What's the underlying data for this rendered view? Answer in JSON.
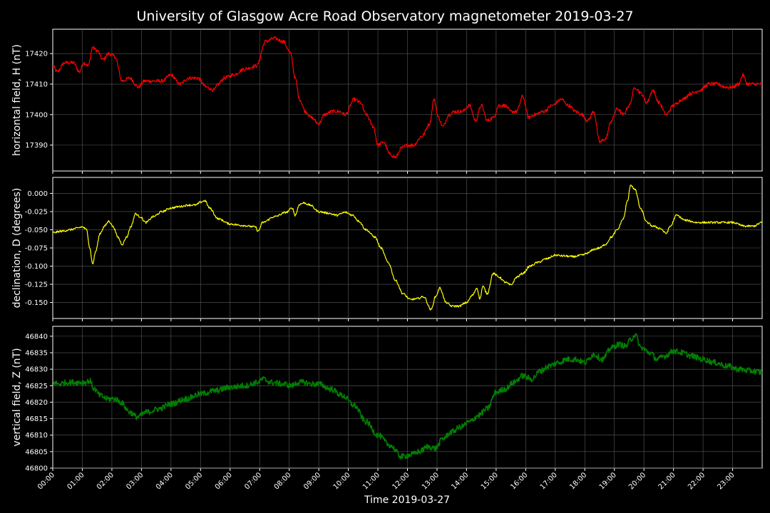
{
  "chart_data": {
    "type": "line",
    "title": "University of Glasgow Acre Road Observatory magnetometer 2019-03-27",
    "xlabel": "Time 2019-03-27",
    "x_unit": "hours",
    "xlim": [
      0,
      24
    ],
    "x_ticks": [
      "00:00",
      "01:00",
      "02:00",
      "03:00",
      "04:00",
      "05:00",
      "06:00",
      "07:00",
      "08:00",
      "09:00",
      "10:00",
      "11:00",
      "12:00",
      "13:00",
      "14:00",
      "15:00",
      "16:00",
      "17:00",
      "18:00",
      "19:00",
      "20:00",
      "21:00",
      "22:00",
      "23:00"
    ],
    "grid": true,
    "background": "#000000",
    "panels": [
      {
        "ylabel": "horizontal field, H (nT)",
        "color": "#ff0000",
        "ylim": [
          17381.5,
          17428
        ],
        "yticks": [
          17390,
          17400,
          17410,
          17420
        ],
        "ytick_decimals": 0,
        "noise": 0.6,
        "x": [
          0,
          0.15,
          0.4,
          0.7,
          0.9,
          1.05,
          1.2,
          1.35,
          1.5,
          1.7,
          1.9,
          2.1,
          2.35,
          2.6,
          2.9,
          3.1,
          3.3,
          3.7,
          4.0,
          4.3,
          4.6,
          4.9,
          5.2,
          5.45,
          5.6,
          5.8,
          6.1,
          6.5,
          6.9,
          7.2,
          7.5,
          7.8,
          8.05,
          8.2,
          8.35,
          8.55,
          8.75,
          9.0,
          9.2,
          9.45,
          9.7,
          9.9,
          10.2,
          10.4,
          10.6,
          10.85,
          11.0,
          11.2,
          11.4,
          11.6,
          11.8,
          12.0,
          12.2,
          12.5,
          12.75,
          12.9,
          13.05,
          13.2,
          13.4,
          13.6,
          13.85,
          14.1,
          14.3,
          14.5,
          14.7,
          14.9,
          15.1,
          15.3,
          15.5,
          15.7,
          15.9,
          16.1,
          16.3,
          16.6,
          16.9,
          17.2,
          17.45,
          17.7,
          17.9,
          18.1,
          18.3,
          18.5,
          18.7,
          18.9,
          19.1,
          19.3,
          19.5,
          19.7,
          19.9,
          20.1,
          20.3,
          20.5,
          20.75,
          21.0,
          21.3,
          21.6,
          21.9,
          22.2,
          22.5,
          22.75,
          23.0,
          23.2,
          23.35,
          23.5,
          23.75,
          24.0
        ],
        "values": [
          17416,
          17414,
          17417,
          17417,
          17414,
          17417,
          17416,
          17422,
          17421,
          17418,
          17420,
          17419,
          17411,
          17412,
          17409,
          17411,
          17411,
          17411,
          17413,
          17410,
          17412,
          17412,
          17409,
          17408,
          17410,
          17412,
          17413,
          17415,
          17416,
          17424,
          17425,
          17424,
          17420,
          17412,
          17405,
          17401,
          17399,
          17397,
          17400,
          17401,
          17401,
          17400,
          17405,
          17404,
          17400,
          17396,
          17390,
          17391,
          17387,
          17386,
          17389,
          17390,
          17390,
          17393,
          17397,
          17405,
          17399,
          17396,
          17400,
          17401,
          17401,
          17403,
          17398,
          17403,
          17398,
          17399,
          17403,
          17403,
          17401,
          17401,
          17406,
          17399,
          17400,
          17401,
          17403,
          17405,
          17403,
          17401,
          17400,
          17398,
          17401,
          17391,
          17392,
          17398,
          17402,
          17400,
          17403,
          17409,
          17407,
          17404,
          17408,
          17404,
          17400,
          17403,
          17405,
          17407,
          17408,
          17410,
          17410,
          17409,
          17409,
          17410,
          17413,
          17410,
          17410,
          17410
        ]
      },
      {
        "ylabel": "declination, D (degrees)",
        "color": "#ffff00",
        "ylim": [
          -0.172,
          0.022
        ],
        "yticks": [
          -0.15,
          -0.125,
          -0.1,
          -0.075,
          -0.05,
          -0.025,
          0.0
        ],
        "ytick_decimals": 3,
        "noise": 0.0014,
        "x": [
          0,
          0.3,
          0.6,
          0.8,
          1.0,
          1.15,
          1.25,
          1.35,
          1.45,
          1.6,
          1.75,
          1.9,
          2.05,
          2.2,
          2.35,
          2.5,
          2.65,
          2.8,
          2.95,
          3.15,
          3.4,
          3.7,
          4.0,
          4.3,
          4.6,
          4.85,
          5.0,
          5.15,
          5.3,
          5.6,
          6.0,
          6.4,
          6.85,
          6.95,
          7.1,
          7.5,
          7.9,
          8.1,
          8.2,
          8.35,
          8.5,
          8.7,
          9.0,
          9.3,
          9.6,
          9.9,
          10.15,
          10.35,
          10.6,
          10.9,
          11.1,
          11.35,
          11.6,
          11.85,
          12.1,
          12.3,
          12.55,
          12.8,
          12.95,
          13.1,
          13.3,
          13.5,
          13.75,
          14.0,
          14.2,
          14.35,
          14.45,
          14.55,
          14.7,
          14.9,
          15.1,
          15.3,
          15.5,
          15.7,
          15.9,
          16.15,
          16.4,
          16.7,
          17.0,
          17.3,
          17.6,
          17.9,
          18.1,
          18.3,
          18.5,
          18.7,
          18.9,
          19.1,
          19.3,
          19.45,
          19.55,
          19.7,
          19.9,
          20.1,
          20.3,
          20.55,
          20.75,
          20.9,
          21.1,
          21.4,
          21.8,
          22.2,
          22.6,
          23.0,
          23.4,
          23.7,
          24.0
        ],
        "values": [
          -0.054,
          -0.052,
          -0.05,
          -0.048,
          -0.046,
          -0.05,
          -0.075,
          -0.097,
          -0.08,
          -0.055,
          -0.045,
          -0.038,
          -0.046,
          -0.06,
          -0.07,
          -0.06,
          -0.045,
          -0.028,
          -0.032,
          -0.04,
          -0.032,
          -0.025,
          -0.02,
          -0.018,
          -0.016,
          -0.016,
          -0.012,
          -0.01,
          -0.02,
          -0.035,
          -0.042,
          -0.044,
          -0.046,
          -0.052,
          -0.04,
          -0.032,
          -0.026,
          -0.02,
          -0.03,
          -0.015,
          -0.013,
          -0.016,
          -0.025,
          -0.027,
          -0.03,
          -0.026,
          -0.03,
          -0.038,
          -0.05,
          -0.06,
          -0.075,
          -0.095,
          -0.12,
          -0.138,
          -0.146,
          -0.145,
          -0.142,
          -0.16,
          -0.142,
          -0.13,
          -0.15,
          -0.155,
          -0.155,
          -0.15,
          -0.14,
          -0.13,
          -0.145,
          -0.128,
          -0.138,
          -0.11,
          -0.115,
          -0.122,
          -0.126,
          -0.115,
          -0.11,
          -0.1,
          -0.095,
          -0.09,
          -0.085,
          -0.086,
          -0.087,
          -0.085,
          -0.082,
          -0.077,
          -0.075,
          -0.07,
          -0.06,
          -0.05,
          -0.035,
          -0.01,
          0.012,
          0.005,
          -0.022,
          -0.04,
          -0.045,
          -0.048,
          -0.055,
          -0.045,
          -0.03,
          -0.037,
          -0.04,
          -0.04,
          -0.04,
          -0.04,
          -0.045,
          -0.045,
          -0.04
        ]
      },
      {
        "ylabel": "vertical field, Z (nT)",
        "color": "#008000",
        "ylim": [
          46800,
          46843
        ],
        "yticks": [
          46800,
          46805,
          46810,
          46815,
          46820,
          46825,
          46830,
          46835,
          46840
        ],
        "ytick_decimals": 0,
        "noise": 0.9,
        "x": [
          0,
          0.2,
          0.5,
          0.9,
          1.1,
          1.25,
          1.4,
          1.6,
          1.85,
          2.1,
          2.3,
          2.6,
          2.85,
          3.2,
          3.6,
          4.0,
          4.5,
          5.0,
          5.5,
          6.0,
          6.5,
          6.95,
          7.1,
          7.4,
          7.8,
          8.1,
          8.3,
          8.5,
          8.75,
          9.0,
          9.4,
          9.8,
          10.2,
          10.6,
          11.0,
          11.4,
          11.8,
          12.1,
          12.4,
          12.7,
          12.95,
          13.2,
          13.5,
          13.8,
          14.1,
          14.4,
          14.7,
          15.0,
          15.3,
          15.6,
          15.9,
          16.2,
          16.5,
          16.8,
          17.1,
          17.4,
          17.7,
          18.0,
          18.3,
          18.6,
          18.9,
          19.15,
          19.4,
          19.55,
          19.7,
          19.9,
          20.2,
          20.45,
          20.7,
          21.0,
          21.3,
          21.6,
          22.0,
          22.4,
          22.8,
          23.2,
          23.6,
          24.0
        ],
        "values": [
          46826,
          46825.5,
          46826,
          46826,
          46826,
          46826.5,
          46824,
          46822,
          46821,
          46821,
          46820,
          46817,
          46815.5,
          46817,
          46818,
          46819.5,
          46821,
          46822.5,
          46823.5,
          46824.5,
          46825,
          46826,
          46827,
          46826,
          46825.5,
          46825,
          46826,
          46826,
          46825.5,
          46825.5,
          46824,
          46822,
          46819,
          46814,
          46810,
          46807,
          46803.5,
          46804,
          46805,
          46806.5,
          46806,
          46809,
          46811,
          46812.5,
          46814,
          46816,
          46818,
          46823,
          46824,
          46826,
          46828,
          46827,
          46829.5,
          46831,
          46832,
          46833,
          46833,
          46832,
          46834.5,
          46833,
          46836.5,
          46837.5,
          46837,
          46839,
          46840.5,
          46836.5,
          46835,
          46833,
          46834,
          46835.5,
          46835,
          46834,
          46833,
          46832,
          46831,
          46830,
          46829.5,
          46829
        ]
      }
    ]
  }
}
